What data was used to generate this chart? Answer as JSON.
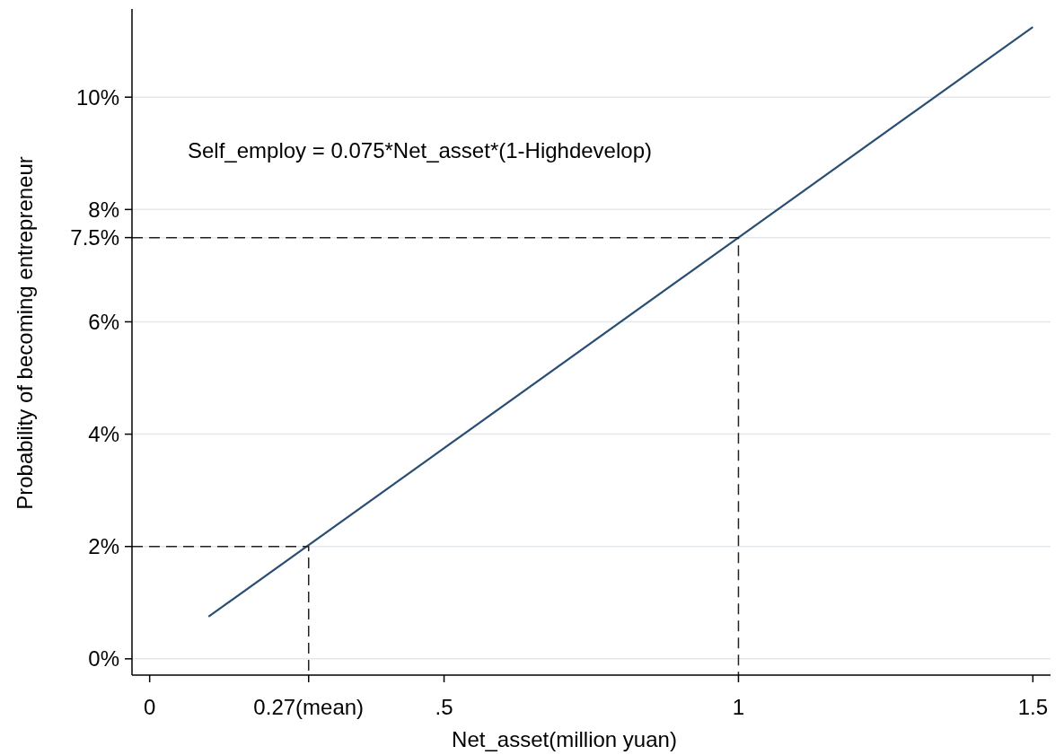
{
  "chart_data": {
    "type": "line",
    "xlabel": "Net_asset(million yuan)",
    "ylabel": "Probability of becoming entrepreneur",
    "annotations": [
      "Self_employ = 0.075*Net_asset*(1-Highdevelop)"
    ],
    "xlim": [
      -0.03,
      1.53
    ],
    "ylim": [
      -0.29,
      11.57
    ],
    "xticks": [
      0,
      {
        "value": 0.27,
        "label": "0.27(mean)"
      },
      {
        "value": 0.5,
        "label": ".5"
      },
      1,
      1.5
    ],
    "yticks": [
      {
        "value": 0,
        "label": "0%"
      },
      {
        "value": 2,
        "label": "2%"
      },
      {
        "value": 4,
        "label": "4%"
      },
      {
        "value": 6,
        "label": "6%"
      },
      {
        "value": 7.5,
        "label": "7.5%"
      },
      {
        "value": 8,
        "label": "8%"
      },
      {
        "value": 10,
        "label": "10%"
      }
    ],
    "grid": "y",
    "series": [
      {
        "color": "#2b4f73",
        "x": [
          0.1,
          1.5
        ],
        "values": [
          0.75,
          11.25
        ]
      },
      {
        "color": "#222222",
        "line_style": "dashed",
        "x": [
          -0.03,
          0.27,
          0.27
        ],
        "values": [
          2,
          2,
          -0.29
        ]
      },
      {
        "color": "#222222",
        "line_style": "dashed",
        "x": [
          -0.03,
          1,
          1
        ],
        "values": [
          7.5,
          7.5,
          -0.29
        ]
      }
    ]
  }
}
